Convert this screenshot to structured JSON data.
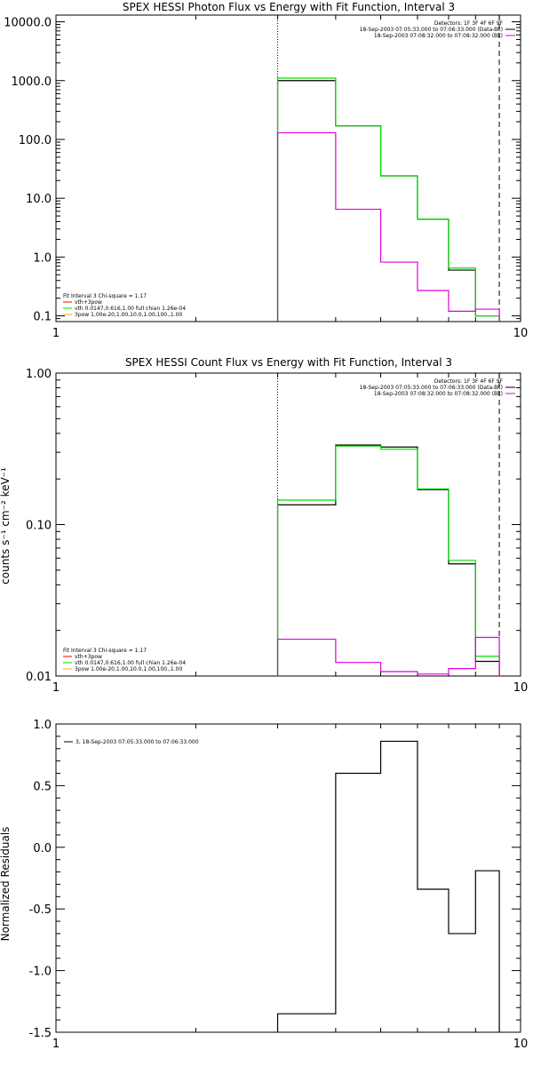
{
  "chart_data": [
    {
      "type": "line",
      "title": "SPEX HESSI Photon Flux vs Energy with Fit Function, Interval 3",
      "xlabel": "",
      "ylabel": "",
      "x_scale": "log",
      "y_scale": "log",
      "xlim": [
        1,
        10
      ],
      "ylim": [
        0.08,
        13000
      ],
      "x_tick_labels": [
        "1",
        "10"
      ],
      "x_ticks": [
        1,
        10
      ],
      "y_tick_labels": [
        "0.1",
        "1.0",
        "10.0",
        "100.0",
        "1000.0",
        "10000.0"
      ],
      "y_ticks": [
        0.1,
        1,
        10,
        100,
        1000,
        10000
      ],
      "step_x": [
        3,
        4,
        5,
        6,
        7,
        8,
        9
      ],
      "vlines": [
        {
          "x": 3,
          "style": "dotted"
        },
        {
          "x": 9,
          "style": "dashed"
        }
      ],
      "series": [
        {
          "color": "#000000",
          "values": [
            1000,
            170,
            24,
            4.4,
            0.6,
            0.1
          ]
        },
        {
          "color": "#00dd00",
          "values": [
            1100,
            170,
            24,
            4.4,
            0.65,
            0.1
          ]
        },
        {
          "color": "#dd00dd",
          "values": [
            130,
            6.5,
            0.82,
            0.27,
            0.12,
            0.13
          ]
        }
      ],
      "legend_top_right": {
        "lines": [
          "Detectors: 1F 3F 4F 6F 9F",
          "18-Sep-2003 07:05:33.000 to 07:06:33.000 (Data-Bk)",
          "18-Sep-2003 07:08:32.000 to 07:08:32.000 (Bk)"
        ],
        "colors": [
          "",
          "#000000",
          "#dd00dd"
        ]
      },
      "legend_bottom_left": {
        "lines": [
          "Fit Interval 3   Chi-square = 1.17",
          "vth+3pow",
          "vth 0.0147,0.616,1.00  full chian 1.26e-04",
          "3pow 1.00e-20,1.00,10.0,1.00,100.,1.00"
        ],
        "colors": [
          "",
          "#ff0000",
          "#00dd00",
          "#ffaa00"
        ]
      }
    },
    {
      "type": "line",
      "title": "SPEX HESSI Count Flux vs Energy with Fit Function, Interval 3",
      "xlabel": "",
      "ylabel": "counts s⁻¹ cm⁻² keV⁻¹",
      "x_scale": "log",
      "y_scale": "log",
      "xlim": [
        1,
        10
      ],
      "ylim": [
        0.01,
        1.0
      ],
      "x_tick_labels": [
        "1",
        "10"
      ],
      "x_ticks": [
        1,
        10
      ],
      "y_tick_labels": [
        "0.01",
        "0.10",
        "1.00"
      ],
      "y_ticks": [
        0.01,
        0.1,
        1
      ],
      "step_x": [
        3,
        4,
        5,
        6,
        7,
        8,
        9
      ],
      "vlines": [
        {
          "x": 3,
          "style": "dotted"
        },
        {
          "x": 9,
          "style": "dashed"
        }
      ],
      "series": [
        {
          "color": "#000000",
          "values": [
            0.135,
            0.335,
            0.325,
            0.17,
            0.055,
            0.0125
          ]
        },
        {
          "color": "#00dd00",
          "values": [
            0.145,
            0.33,
            0.315,
            0.172,
            0.058,
            0.0135
          ]
        },
        {
          "color": "#dd00dd",
          "values": [
            0.0175,
            0.0123,
            0.0107,
            0.0103,
            0.0112,
            0.018
          ]
        }
      ],
      "legend_top_right": {
        "lines": [
          "Detectors: 1F 3F 4F 6F 9F",
          "18-Sep-2003 07:05:33.000 to 07:06:33.000 (Data-Bk)",
          "18-Sep-2003 07:08:32.000 to 07:08:32.000 (Bk)"
        ],
        "colors": [
          "",
          "#000000",
          "#dd00dd"
        ]
      },
      "legend_bottom_left": {
        "lines": [
          "Fit Interval 3   Chi-square = 1.17",
          "vth+3pow",
          "vth 0.0147,0.616,1.00  full chian 1.26e-04",
          "3pow 1.00e-20,1.00,10.0,1.00,100.,1.00"
        ],
        "colors": [
          "",
          "#ff0000",
          "#00dd00",
          "#ffaa00"
        ]
      }
    },
    {
      "type": "line",
      "title": "",
      "xlabel": "",
      "ylabel": "Normalized Residuals",
      "x_scale": "log",
      "y_scale": "linear",
      "xlim": [
        1,
        10
      ],
      "ylim": [
        -1.5,
        1.0
      ],
      "x_tick_labels": [
        "1",
        "10"
      ],
      "x_ticks": [
        1,
        10
      ],
      "y_tick_labels": [
        "-1.5",
        "-1.0",
        "-0.5",
        "0.0",
        "0.5",
        "1.0"
      ],
      "y_ticks": [
        -1.5,
        -1.0,
        -0.5,
        0.0,
        0.5,
        1.0
      ],
      "step_x": [
        3,
        4,
        5,
        6,
        7,
        8,
        9
      ],
      "vlines": [],
      "series": [
        {
          "color": "#000000",
          "values": [
            -1.35,
            0.6,
            0.86,
            -0.34,
            -0.7,
            -0.19
          ]
        }
      ],
      "legend_top_left": {
        "lines": [
          "3, 18-Sep-2003 07:05:33.000 to 07:06:33.000"
        ],
        "colors": [
          "#000000"
        ]
      }
    }
  ]
}
